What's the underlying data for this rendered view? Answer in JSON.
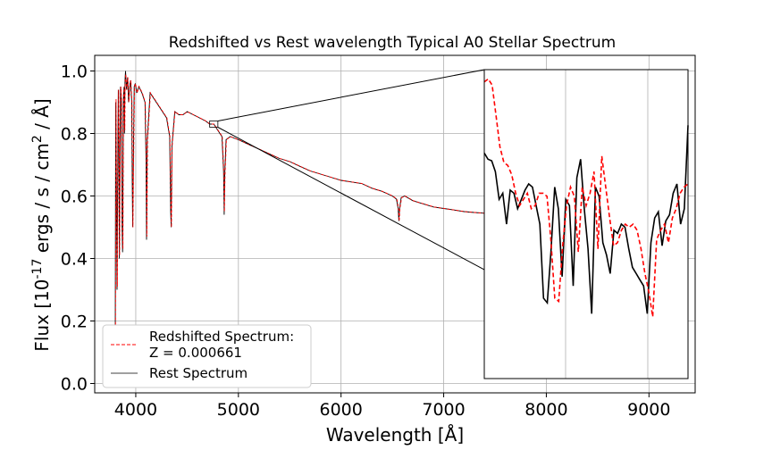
{
  "chart_data": {
    "type": "line",
    "title": "Redshifted vs Rest wavelength Typical A0 Stellar Spectrum",
    "xlabel": "Wavelength [Å]",
    "ylabel": "Flux [10^-17 ergs / s / cm^2 / Å]",
    "xlim": [
      3600,
      9450
    ],
    "ylim": [
      -0.03,
      1.05
    ],
    "x_ticks": [
      "4000",
      "5000",
      "6000",
      "7000",
      "8000",
      "9000"
    ],
    "y_ticks": [
      "0.0",
      "0.2",
      "0.4",
      "0.6",
      "0.8",
      "1.0"
    ],
    "grid": true,
    "legend_position": "lower-left",
    "legend": {
      "redshifted_line1": "Redshifted Spectrum:",
      "redshifted_line2": "Z = 0.000661",
      "rest": "Rest Spectrum"
    },
    "series": [
      {
        "name": "Rest Spectrum",
        "color": "#000000",
        "style": "solid",
        "x": [
          3800,
          3805,
          3812,
          3818,
          3822,
          3830,
          3836,
          3840,
          3846,
          3852,
          3860,
          3866,
          3872,
          3880,
          3886,
          3890,
          3895,
          3900,
          3910,
          3920,
          3930,
          3940,
          3950,
          3960,
          3966,
          3970,
          3976,
          3985,
          3995,
          4010,
          4030,
          4060,
          4090,
          4100,
          4105,
          4112,
          4140,
          4180,
          4220,
          4260,
          4300,
          4330,
          4340,
          4345,
          4352,
          4380,
          4420,
          4460,
          4500,
          4560,
          4620,
          4680,
          4720,
          4760,
          4800,
          4840,
          4855,
          4861,
          4866,
          4880,
          4920,
          5000,
          5100,
          5200,
          5300,
          5400,
          5500,
          5600,
          5700,
          5800,
          5900,
          6000,
          6100,
          6200,
          6300,
          6400,
          6500,
          6540,
          6556,
          6563,
          6570,
          6586,
          6620,
          6700,
          6800,
          6900,
          7000,
          7100,
          7200,
          7300,
          7400
        ],
        "y": [
          0.15,
          0.9,
          0.55,
          0.3,
          0.58,
          0.94,
          0.7,
          0.4,
          0.78,
          0.95,
          0.9,
          0.5,
          0.42,
          0.92,
          0.95,
          0.8,
          0.97,
          1.0,
          0.94,
          0.98,
          0.9,
          0.95,
          0.97,
          0.9,
          0.65,
          0.5,
          0.7,
          0.95,
          0.96,
          0.93,
          0.95,
          0.93,
          0.9,
          0.72,
          0.46,
          0.78,
          0.93,
          0.91,
          0.89,
          0.87,
          0.85,
          0.79,
          0.55,
          0.5,
          0.76,
          0.87,
          0.86,
          0.86,
          0.87,
          0.86,
          0.85,
          0.84,
          0.83,
          0.83,
          0.81,
          0.79,
          0.68,
          0.54,
          0.66,
          0.78,
          0.79,
          0.78,
          0.765,
          0.75,
          0.735,
          0.72,
          0.71,
          0.695,
          0.68,
          0.67,
          0.66,
          0.65,
          0.645,
          0.64,
          0.625,
          0.615,
          0.6,
          0.59,
          0.56,
          0.52,
          0.56,
          0.595,
          0.6,
          0.585,
          0.575,
          0.565,
          0.56,
          0.555,
          0.55,
          0.547,
          0.545
        ]
      },
      {
        "name": "Redshifted Spectrum:",
        "color": "#ff0000",
        "style": "dashed",
        "x": [
          3803,
          3808,
          3815,
          3821,
          3825,
          3833,
          3839,
          3843,
          3849,
          3855,
          3863,
          3869,
          3875,
          3883,
          3889,
          3893,
          3898,
          3903,
          3913,
          3923,
          3933,
          3943,
          3953,
          3963,
          3969,
          3973,
          3979,
          3988,
          3998,
          4013,
          4033,
          4063,
          4093,
          4103,
          4108,
          4115,
          4143,
          4183,
          4223,
          4263,
          4303,
          4333,
          4343,
          4348,
          4355,
          4383,
          4423,
          4463,
          4503,
          4563,
          4623,
          4683,
          4723,
          4763,
          4803,
          4843,
          4858,
          4864,
          4869,
          4883,
          4923,
          5003,
          5103,
          5203,
          5303,
          5403,
          5503,
          5603,
          5703,
          5803,
          5903,
          6003,
          6103,
          6203,
          6303,
          6403,
          6503,
          6544,
          6560,
          6567,
          6574,
          6590,
          6624,
          6704,
          6804,
          6905,
          7005,
          7105,
          7205,
          7305,
          7400
        ],
        "y": [
          0.16,
          0.91,
          0.54,
          0.31,
          0.57,
          0.94,
          0.71,
          0.41,
          0.77,
          0.95,
          0.9,
          0.51,
          0.43,
          0.92,
          0.95,
          0.81,
          0.97,
          0.99,
          0.94,
          0.98,
          0.9,
          0.95,
          0.97,
          0.9,
          0.66,
          0.5,
          0.7,
          0.95,
          0.96,
          0.93,
          0.95,
          0.93,
          0.9,
          0.72,
          0.47,
          0.78,
          0.93,
          0.91,
          0.89,
          0.87,
          0.85,
          0.79,
          0.56,
          0.5,
          0.76,
          0.87,
          0.86,
          0.86,
          0.87,
          0.86,
          0.85,
          0.84,
          0.83,
          0.83,
          0.81,
          0.79,
          0.68,
          0.55,
          0.66,
          0.78,
          0.79,
          0.78,
          0.765,
          0.75,
          0.735,
          0.72,
          0.71,
          0.695,
          0.68,
          0.67,
          0.66,
          0.65,
          0.645,
          0.64,
          0.625,
          0.615,
          0.6,
          0.59,
          0.56,
          0.52,
          0.56,
          0.595,
          0.6,
          0.585,
          0.575,
          0.565,
          0.56,
          0.555,
          0.55,
          0.547,
          0.545
        ]
      }
    ],
    "inset": {
      "source_xlim": [
        4720,
        4800
      ],
      "source_ylim": [
        0.82,
        0.84
      ],
      "rest_y": [
        0.73,
        0.71,
        0.705,
        0.67,
        0.58,
        0.6,
        0.5,
        0.61,
        0.6,
        0.55,
        0.58,
        0.61,
        0.63,
        0.62,
        0.56,
        0.5,
        0.26,
        0.245,
        0.41,
        0.62,
        0.55,
        0.33,
        0.58,
        0.56,
        0.3,
        0.65,
        0.71,
        0.55,
        0.42,
        0.21,
        0.62,
        0.59,
        0.44,
        0.4,
        0.34,
        0.48,
        0.47,
        0.5,
        0.49,
        0.42,
        0.36,
        0.34,
        0.32,
        0.3,
        0.21,
        0.44,
        0.52,
        0.54,
        0.43,
        0.51,
        0.53,
        0.6,
        0.63,
        0.5,
        0.55,
        0.82
      ],
      "redshifted_y": [
        0.96,
        0.97,
        0.95,
        0.85,
        0.75,
        0.7,
        0.69,
        0.66,
        0.6,
        0.56,
        0.58,
        0.6,
        0.55,
        0.56,
        0.6,
        0.6,
        0.59,
        0.45,
        0.26,
        0.25,
        0.43,
        0.56,
        0.62,
        0.59,
        0.41,
        0.62,
        0.56,
        0.6,
        0.67,
        0.42,
        0.72,
        0.62,
        0.52,
        0.43,
        0.44,
        0.48,
        0.5,
        0.49,
        0.5,
        0.48,
        0.42,
        0.34,
        0.28,
        0.2,
        0.45,
        0.48,
        0.5,
        0.44,
        0.52,
        0.55,
        0.6,
        0.62,
        0.63
      ]
    }
  }
}
